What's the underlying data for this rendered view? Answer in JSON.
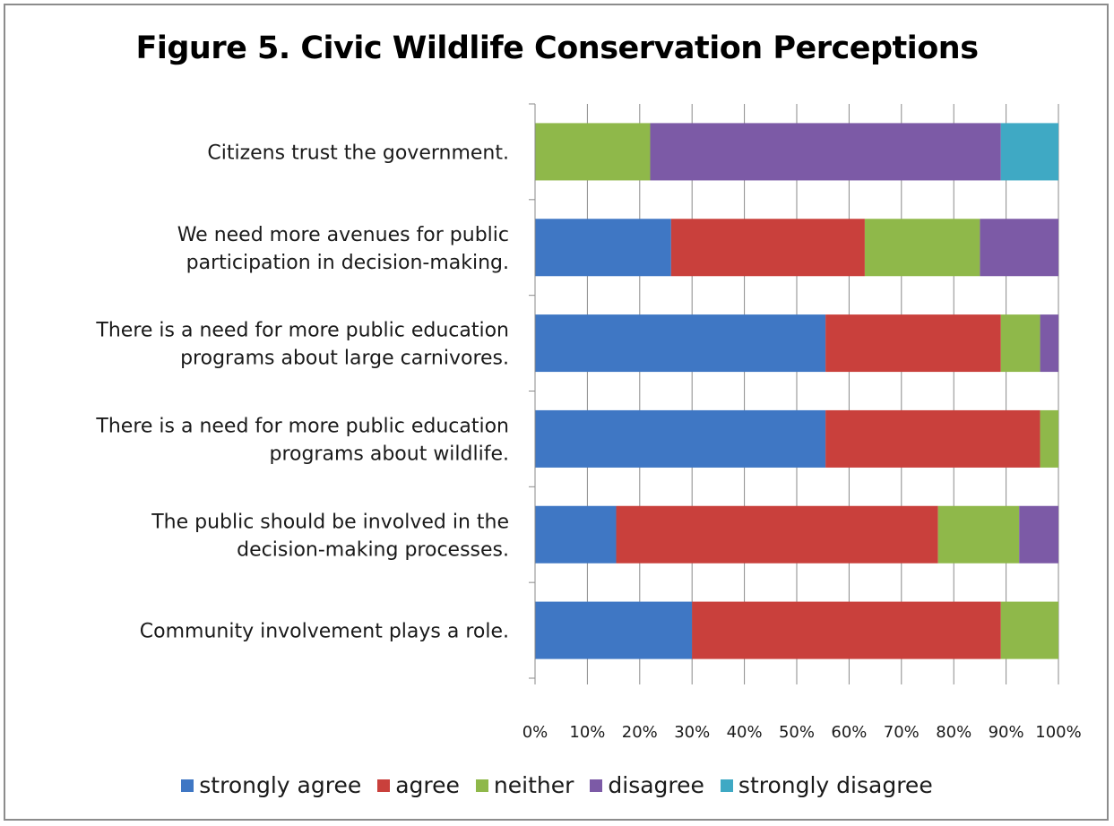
{
  "chart_data": {
    "type": "bar",
    "orientation": "horizontal",
    "stacked": "percent",
    "title": "Figure 5. Civic Wildlife Conservation Perceptions",
    "categories": [
      [
        "Citizens trust the government."
      ],
      [
        "We need more avenues for public",
        "participation in decision-making."
      ],
      [
        "There is a need for more public education",
        "programs about large carnivores."
      ],
      [
        "There is a need for more public education",
        "programs about wildlife."
      ],
      [
        "The public should be involved in the",
        "decision-making processes."
      ],
      [
        "Community involvement plays a role."
      ]
    ],
    "series": [
      {
        "name": "strongly agree",
        "color": "#3f77c4",
        "values": [
          0,
          26,
          55.5,
          55.5,
          15.5,
          30
        ]
      },
      {
        "name": "agree",
        "color": "#c9403c",
        "values": [
          0,
          37,
          33.5,
          41,
          61.5,
          59
        ]
      },
      {
        "name": "neither",
        "color": "#8fb84a",
        "values": [
          22,
          22,
          7.5,
          3.5,
          15.5,
          11
        ]
      },
      {
        "name": "disagree",
        "color": "#7c5aa6",
        "values": [
          67,
          15,
          3.5,
          0,
          7.5,
          0
        ]
      },
      {
        "name": "strongly disagree",
        "color": "#3fa9c4",
        "values": [
          11,
          0,
          0,
          0,
          0,
          0
        ]
      }
    ],
    "xlim": [
      0,
      100
    ],
    "xticks": [
      "0%",
      "10%",
      "20%",
      "30%",
      "40%",
      "50%",
      "60%",
      "70%",
      "80%",
      "90%",
      "100%"
    ],
    "grid": true,
    "legend_position": "bottom"
  }
}
